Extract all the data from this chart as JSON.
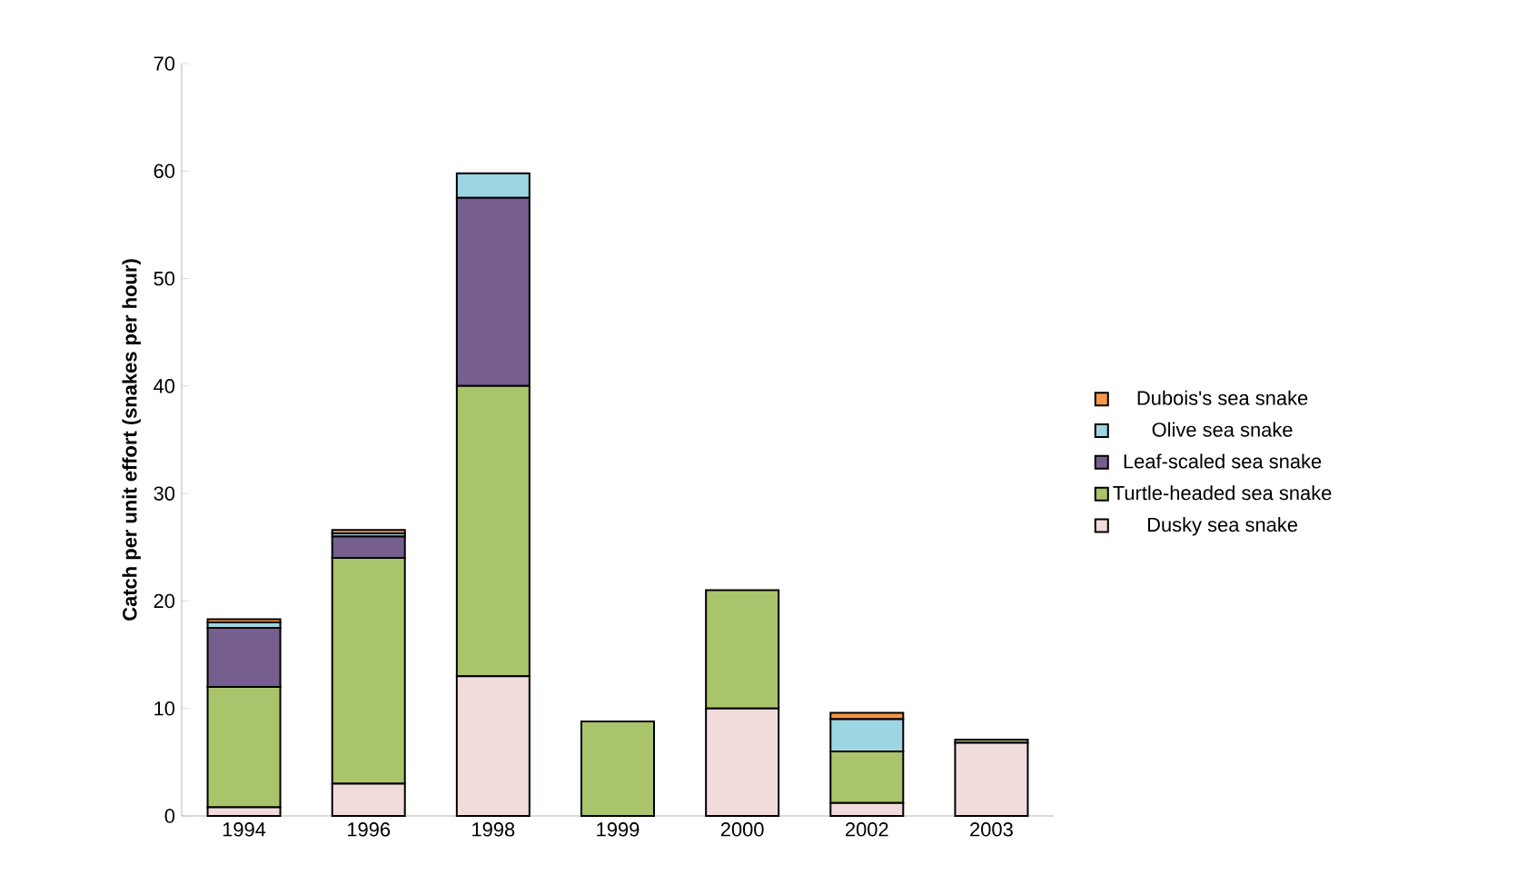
{
  "chart_data": {
    "type": "bar",
    "stacked": true,
    "ylabel": "Catch per unit effort (snakes per hour)",
    "categories": [
      "1994",
      "1996",
      "1998",
      "1999",
      "2000",
      "2002",
      "2003"
    ],
    "series": [
      {
        "name": "Dusky sea snake",
        "color": "#f2dcdb",
        "values": [
          0.8,
          3,
          13,
          0,
          10,
          1.2,
          6.8
        ]
      },
      {
        "name": "Turtle-headed sea snake",
        "color": "#a9c46a",
        "values": [
          11.2,
          21,
          27,
          8.8,
          11,
          4.8,
          0.3
        ]
      },
      {
        "name": "Leaf-scaled sea snake",
        "color": "#765f8f",
        "values": [
          5.5,
          2,
          17.5,
          0,
          0,
          0,
          0
        ]
      },
      {
        "name": "Olive sea snake",
        "color": "#9dd5e2",
        "values": [
          0.5,
          0.3,
          2.3,
          0,
          0,
          3,
          0
        ]
      },
      {
        "name": "Dubois's sea snake",
        "color": "#f79646",
        "values": [
          0.3,
          0.3,
          0,
          0,
          0,
          0.6,
          0
        ]
      }
    ],
    "ylim": [
      0,
      70
    ],
    "yticks": [
      0,
      10,
      20,
      30,
      40,
      50,
      60,
      70
    ],
    "legend": "right"
  }
}
